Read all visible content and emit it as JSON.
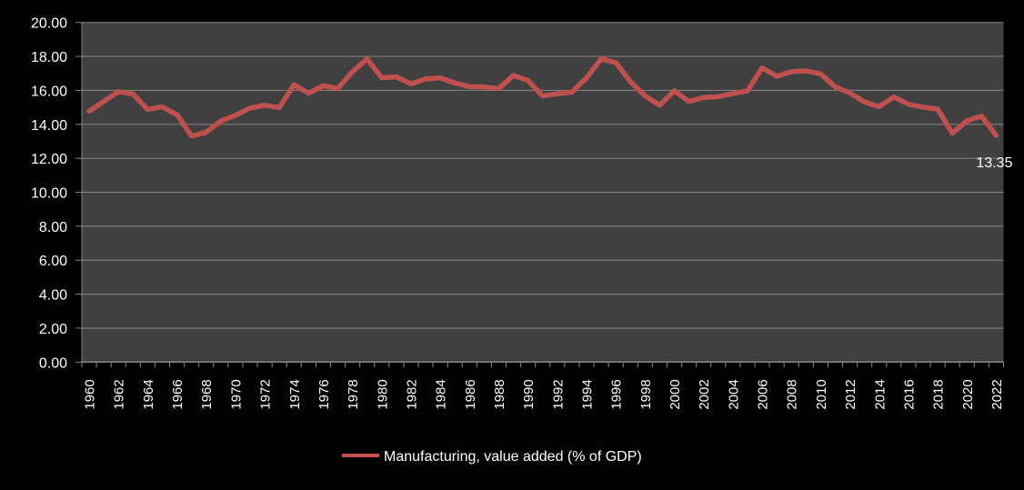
{
  "chart_data": {
    "type": "line",
    "title": "",
    "xlabel": "",
    "ylabel": "",
    "ylim": [
      0,
      20
    ],
    "ytick_step": 2,
    "ytick_labels": [
      "0.00",
      "2.00",
      "4.00",
      "6.00",
      "8.00",
      "10.00",
      "12.00",
      "14.00",
      "16.00",
      "18.00",
      "20.00"
    ],
    "grid": true,
    "legend_position": "bottom",
    "x": [
      1960,
      1961,
      1962,
      1963,
      1964,
      1965,
      1966,
      1967,
      1968,
      1969,
      1970,
      1971,
      1972,
      1973,
      1974,
      1975,
      1976,
      1977,
      1978,
      1979,
      1980,
      1981,
      1982,
      1983,
      1984,
      1985,
      1986,
      1987,
      1988,
      1989,
      1990,
      1991,
      1992,
      1993,
      1994,
      1995,
      1996,
      1997,
      1998,
      1999,
      2000,
      2001,
      2002,
      2003,
      2004,
      2005,
      2006,
      2007,
      2008,
      2009,
      2010,
      2011,
      2012,
      2013,
      2014,
      2015,
      2016,
      2017,
      2018,
      2019,
      2020,
      2021,
      2022
    ],
    "xtick_labels": [
      "1960",
      "1962",
      "1964",
      "1966",
      "1968",
      "1970",
      "1972",
      "1974",
      "1976",
      "1978",
      "1980",
      "1982",
      "1984",
      "1986",
      "1988",
      "1990",
      "1992",
      "1994",
      "1996",
      "1998",
      "2000",
      "2002",
      "2004",
      "2006",
      "2008",
      "2010",
      "2012",
      "2014",
      "2016",
      "2018",
      "2020",
      "2022"
    ],
    "series": [
      {
        "name": "Manufacturing, value added (% of GDP)",
        "color": "#C0504D",
        "values": [
          14.77,
          15.35,
          15.92,
          15.79,
          14.88,
          15.03,
          14.57,
          13.31,
          13.53,
          14.2,
          14.53,
          14.96,
          15.13,
          14.99,
          16.33,
          15.83,
          16.27,
          16.11,
          17.1,
          17.86,
          16.74,
          16.79,
          16.38,
          16.68,
          16.74,
          16.43,
          16.22,
          16.2,
          16.11,
          16.88,
          16.58,
          15.67,
          15.8,
          15.9,
          16.74,
          17.86,
          17.63,
          16.51,
          15.67,
          15.13,
          15.97,
          15.35,
          15.58,
          15.63,
          15.81,
          15.97,
          17.33,
          16.83,
          17.1,
          17.15,
          16.97,
          16.2,
          15.85,
          15.31,
          15.04,
          15.61,
          15.19,
          15.01,
          14.9,
          13.48,
          14.21,
          14.48,
          13.35
        ]
      }
    ],
    "annotations": [
      {
        "x": 2022,
        "text": "13.35"
      }
    ]
  },
  "colors": {
    "page_background": "#000000",
    "plot_background": "#404040",
    "gridline": "#868686",
    "axis_text": "#FFFFFF"
  }
}
